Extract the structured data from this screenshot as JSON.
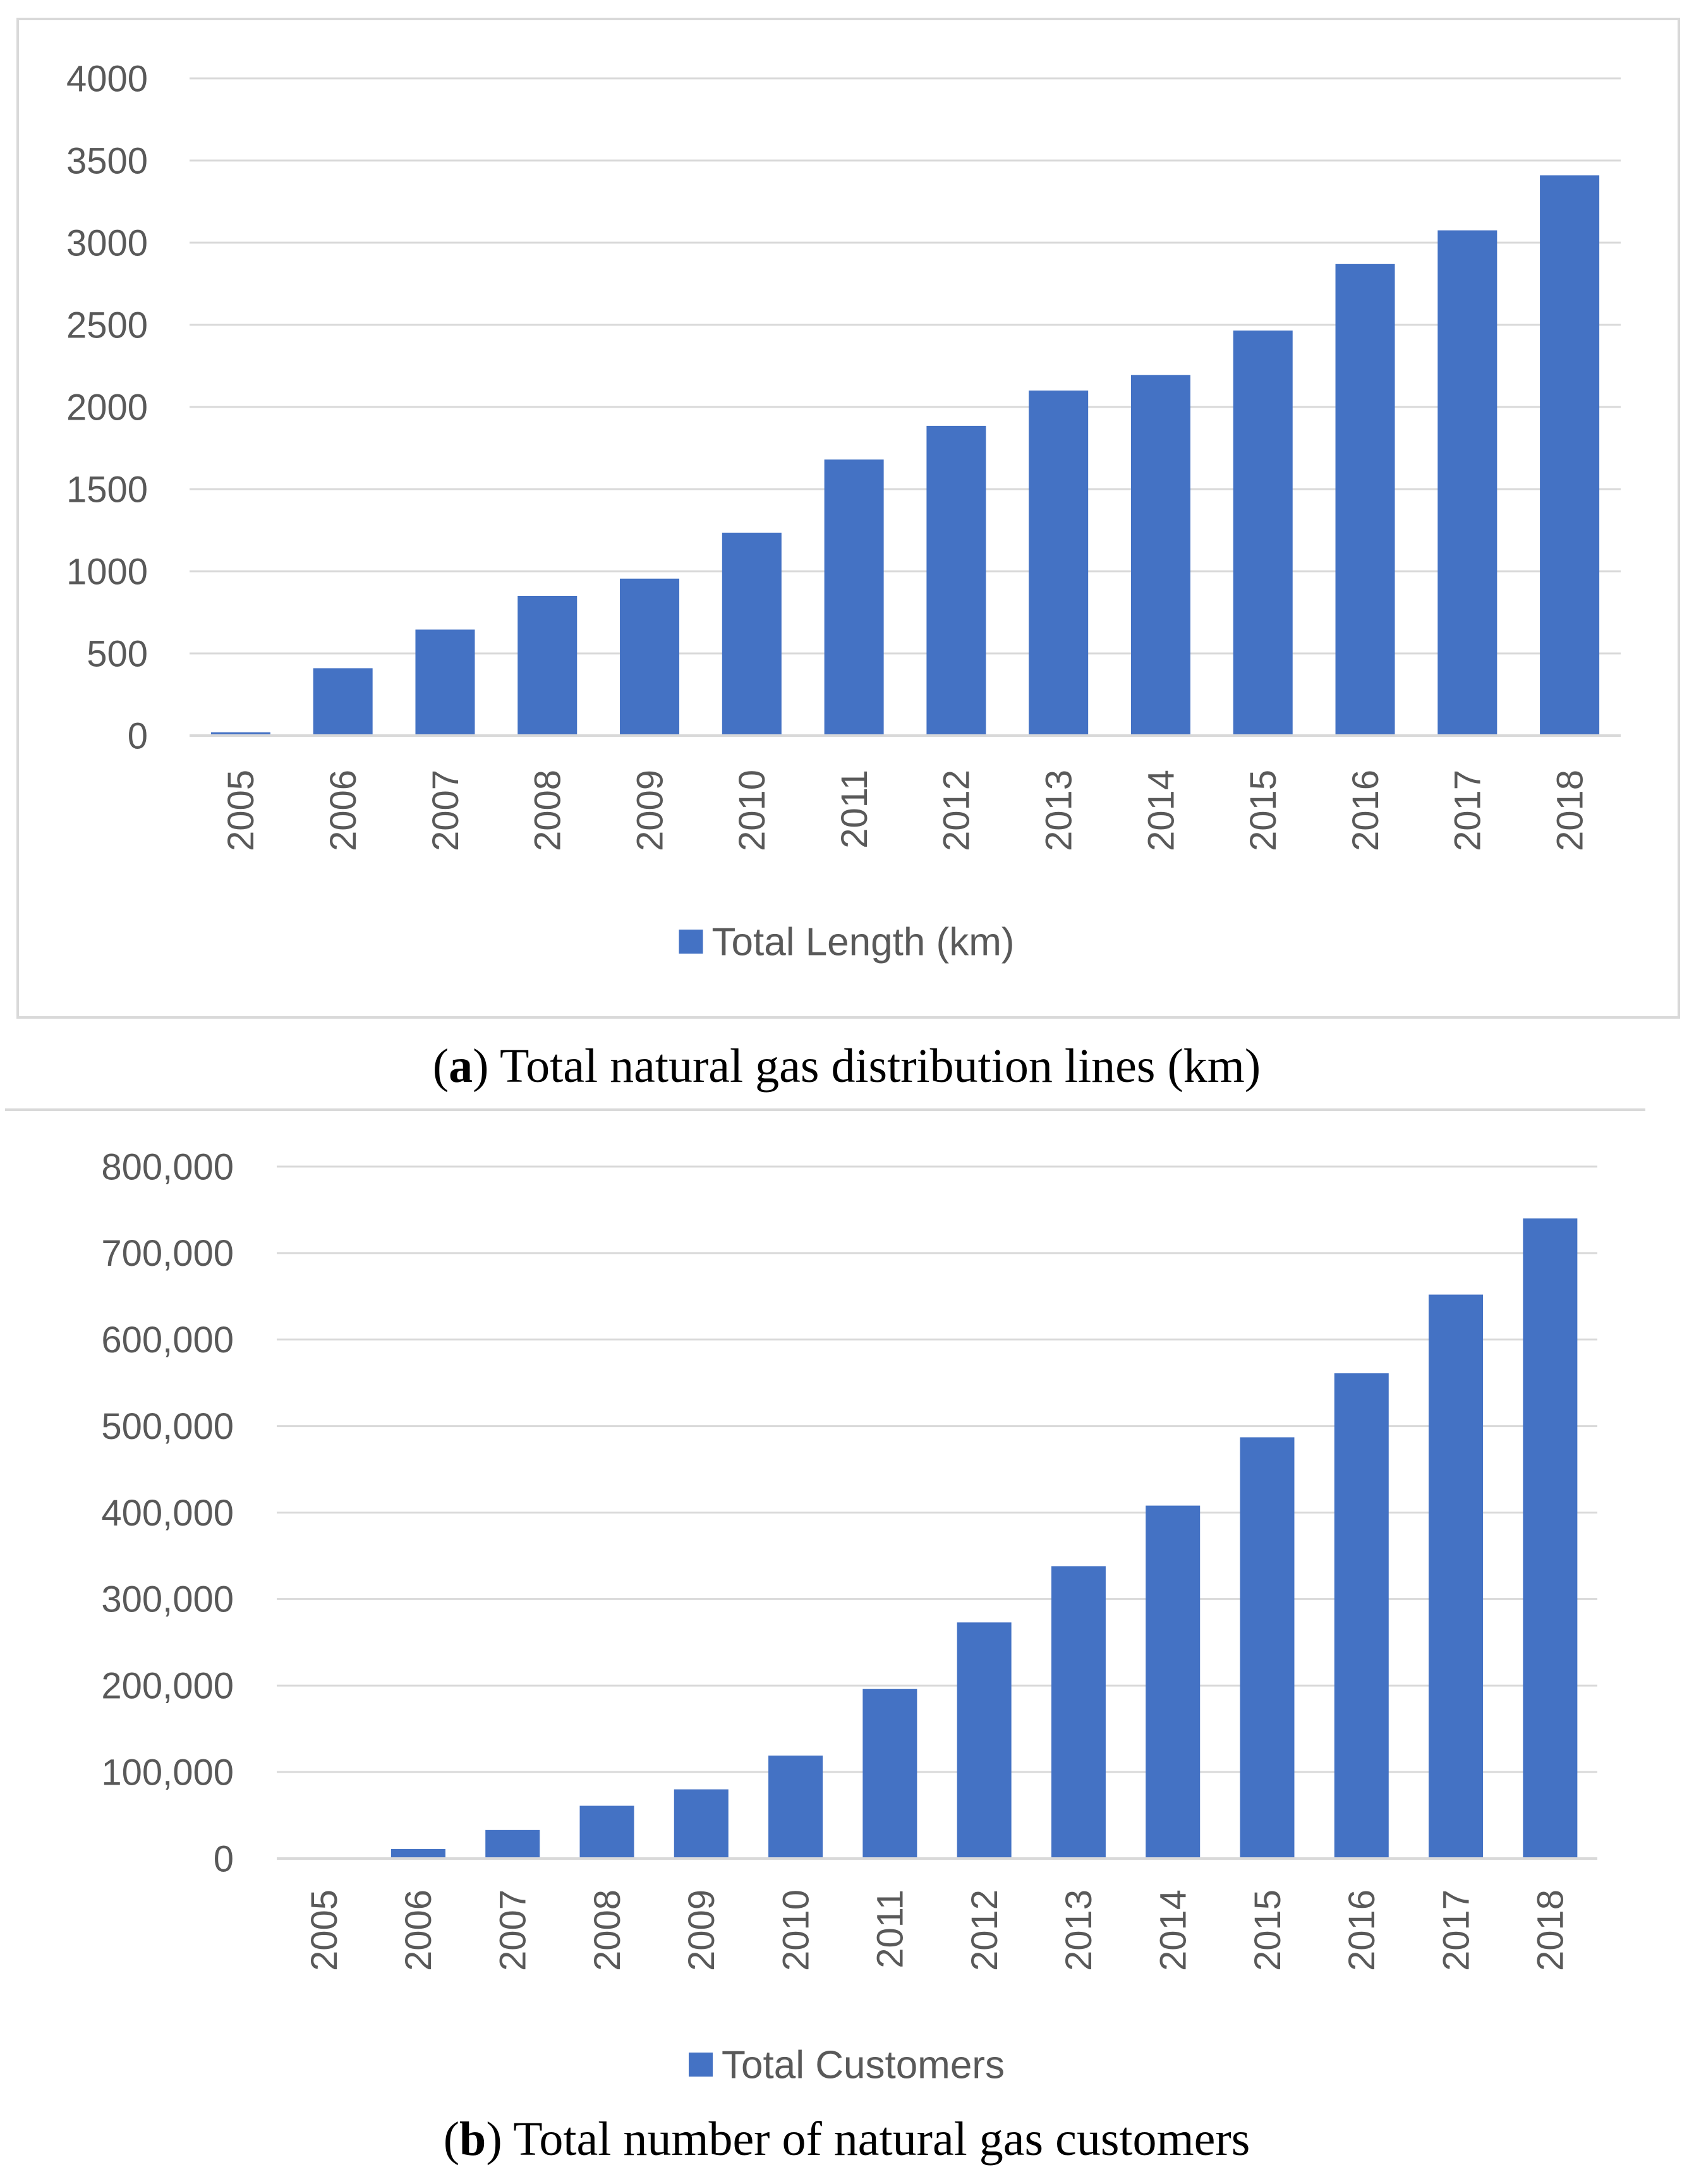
{
  "colors": {
    "bar": "#4472C4",
    "grid": "#D9D9D9",
    "axis_text": "#595959",
    "frame": "#D9D9D9"
  },
  "chart_data": [
    {
      "type": "bar",
      "panel": "a",
      "title": "",
      "categories": [
        "2005",
        "2006",
        "2007",
        "2008",
        "2009",
        "2010",
        "2011",
        "2012",
        "2013",
        "2014",
        "2015",
        "2016",
        "2017",
        "2018"
      ],
      "series": [
        {
          "name": "Total Length (km)",
          "values": [
            20,
            410,
            645,
            850,
            955,
            1235,
            1680,
            1885,
            2100,
            2195,
            2465,
            2870,
            3075,
            3410
          ]
        }
      ],
      "ylim": [
        0,
        4000
      ],
      "yticks": [
        0,
        500,
        1000,
        1500,
        2000,
        2500,
        3000,
        3500,
        4000
      ],
      "ytick_labels": [
        "0",
        "500",
        "1000",
        "1500",
        "2000",
        "2500",
        "3000",
        "3500",
        "4000"
      ],
      "xlabel": "",
      "ylabel": "",
      "legend": "bottom-center",
      "grid": true
    },
    {
      "type": "bar",
      "panel": "b",
      "title": "",
      "categories": [
        "2005",
        "2006",
        "2007",
        "2008",
        "2009",
        "2010",
        "2011",
        "2012",
        "2013",
        "2014",
        "2015",
        "2016",
        "2017",
        "2018"
      ],
      "series": [
        {
          "name": "Total Customers",
          "values": [
            0,
            11000,
            33000,
            61000,
            80000,
            119000,
            196000,
            273000,
            338000,
            408000,
            487000,
            561000,
            652000,
            740000
          ]
        }
      ],
      "ylim": [
        0,
        800000
      ],
      "yticks": [
        0,
        100000,
        200000,
        300000,
        400000,
        500000,
        600000,
        700000,
        800000
      ],
      "ytick_labels": [
        "0",
        "100,000",
        "200,000",
        "300,000",
        "400,000",
        "500,000",
        "600,000",
        "700,000",
        "800,000"
      ],
      "xlabel": "",
      "ylabel": "",
      "legend": "bottom-center",
      "grid": true
    }
  ],
  "captions": {
    "a": {
      "letter": "a",
      "text": " Total natural gas distribution lines (km)"
    },
    "b": {
      "letter": "b",
      "text": " Total number of natural gas customers"
    }
  }
}
